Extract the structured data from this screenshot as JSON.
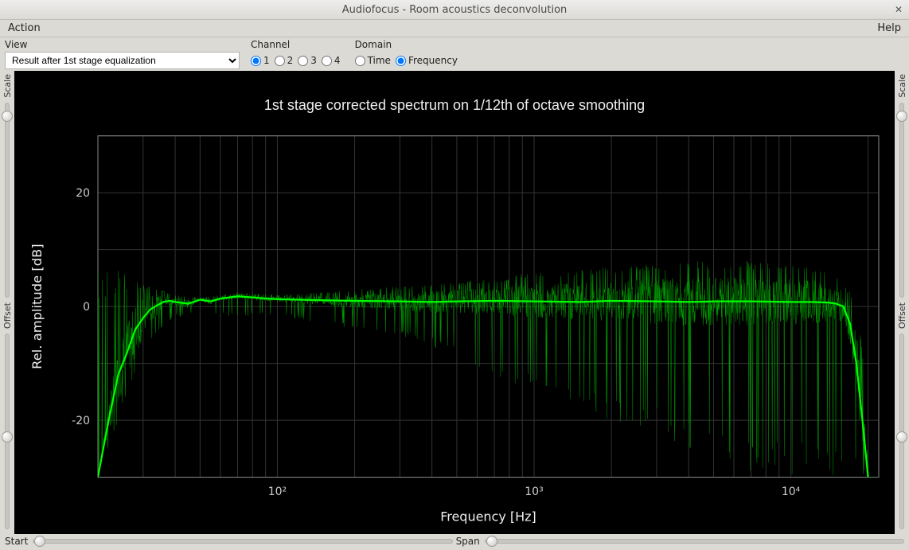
{
  "window": {
    "title": "Audiofocus - Room acoustics deconvolution"
  },
  "menubar": {
    "left": "Action",
    "right": "Help"
  },
  "controls": {
    "view_label": "View",
    "view_value": "Result after 1st stage equalization",
    "channel_label": "Channel",
    "channels": [
      "1",
      "2",
      "3",
      "4"
    ],
    "channel_selected": "1",
    "domain_label": "Domain",
    "domain_options": [
      "Time",
      "Frequency"
    ],
    "domain_selected": "Frequency"
  },
  "side_sliders": {
    "scale_label": "Scale",
    "offset_label": "Offset",
    "left_scale_thumb_pct": 4,
    "left_offset_thumb_pct": 50,
    "right_scale_thumb_pct": 4,
    "right_offset_thumb_pct": 50
  },
  "bottom_sliders": {
    "start_label": "Start",
    "span_label": "Span",
    "start_thumb_pct": 1.5,
    "span_thumb_pct": 1.5
  },
  "chart": {
    "type": "line",
    "title": "1st stage corrected spectrum on 1/12th of octave smoothing",
    "title_fontsize": 18,
    "title_color": "#eeeeee",
    "background_color": "#000000",
    "grid_color": "#333333",
    "frame_color": "#888888",
    "xlabel": "Frequency [Hz]",
    "ylabel": "Rel. amplitude [dB]",
    "label_fontsize": 16,
    "label_color": "#eeeeee",
    "tick_fontsize": 14,
    "tick_color": "#cccccc",
    "x_scale": "log",
    "xlim": [
      20,
      22000
    ],
    "x_decades": [
      100,
      1000,
      10000
    ],
    "x_tick_labels": {
      "100": "10²",
      "1000": "10³",
      "10000": "10⁴"
    },
    "ylim": [
      -30,
      30
    ],
    "y_ticks": [
      -20,
      0,
      20
    ],
    "smooth_color": "#00ff00",
    "smooth_width": 2.2,
    "raw_color": "#009900",
    "raw_width": 0.5,
    "raw_noise_seed": 7,
    "smooth_points": [
      [
        20,
        -30
      ],
      [
        22,
        -20
      ],
      [
        24,
        -12
      ],
      [
        26,
        -8
      ],
      [
        28,
        -4
      ],
      [
        30,
        -2
      ],
      [
        32,
        -0.5
      ],
      [
        34,
        0.2
      ],
      [
        36,
        0.8
      ],
      [
        38,
        1.0
      ],
      [
        40,
        0.8
      ],
      [
        45,
        0.5
      ],
      [
        50,
        1.2
      ],
      [
        55,
        0.9
      ],
      [
        60,
        1.4
      ],
      [
        70,
        1.8
      ],
      [
        80,
        1.6
      ],
      [
        90,
        1.4
      ],
      [
        100,
        1.3
      ],
      [
        120,
        1.2
      ],
      [
        150,
        1.1
      ],
      [
        200,
        1.0
      ],
      [
        300,
        0.9
      ],
      [
        400,
        0.8
      ],
      [
        500,
        0.9
      ],
      [
        700,
        1.0
      ],
      [
        1000,
        0.9
      ],
      [
        1500,
        0.8
      ],
      [
        2000,
        1.0
      ],
      [
        3000,
        0.9
      ],
      [
        4000,
        0.8
      ],
      [
        5000,
        0.9
      ],
      [
        7000,
        0.9
      ],
      [
        10000,
        0.8
      ],
      [
        12000,
        0.8
      ],
      [
        14000,
        0.7
      ],
      [
        15000,
        0.5
      ],
      [
        16000,
        0
      ],
      [
        17000,
        -3
      ],
      [
        18000,
        -10
      ],
      [
        19000,
        -20
      ],
      [
        20000,
        -30
      ]
    ],
    "raw_envelope": [
      [
        20,
        8,
        -30
      ],
      [
        25,
        6,
        -18
      ],
      [
        30,
        4,
        -8
      ],
      [
        35,
        3,
        -4
      ],
      [
        40,
        2,
        -2
      ],
      [
        50,
        1.5,
        -1
      ],
      [
        70,
        2.5,
        -2
      ],
      [
        100,
        2,
        -1.5
      ],
      [
        150,
        2.5,
        -3
      ],
      [
        200,
        3,
        -4
      ],
      [
        300,
        3.5,
        -5
      ],
      [
        400,
        4,
        -7
      ],
      [
        500,
        4.5,
        -9
      ],
      [
        700,
        5,
        -12
      ],
      [
        1000,
        6,
        -15
      ],
      [
        1500,
        6.5,
        -18
      ],
      [
        2000,
        7,
        -20
      ],
      [
        3000,
        7.5,
        -22
      ],
      [
        4000,
        8,
        -25
      ],
      [
        5000,
        8,
        -27
      ],
      [
        7000,
        8,
        -30
      ],
      [
        10000,
        7.5,
        -30
      ],
      [
        13000,
        7,
        -30
      ],
      [
        15000,
        6,
        -30
      ],
      [
        17000,
        3,
        -30
      ],
      [
        19000,
        -5,
        -30
      ],
      [
        20000,
        -30,
        -30
      ]
    ]
  }
}
